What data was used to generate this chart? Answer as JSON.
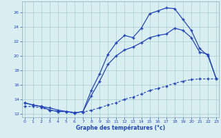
{
  "bg_color": "#d8eef0",
  "grid_color": "#a8ccd0",
  "line_color": "#2244bb",
  "title": "Graphe des températures (°c)",
  "xlim": [
    -0.3,
    23.3
  ],
  "ylim": [
    11.5,
    27.5
  ],
  "xticks": [
    0,
    1,
    2,
    3,
    4,
    5,
    6,
    7,
    8,
    9,
    10,
    11,
    12,
    13,
    14,
    15,
    16,
    17,
    18,
    19,
    20,
    21,
    22,
    23
  ],
  "yticks": [
    12,
    14,
    16,
    18,
    20,
    22,
    24,
    26
  ],
  "line1_x": [
    0,
    1,
    2,
    3,
    4,
    5,
    6,
    7,
    8,
    9,
    10,
    11,
    12,
    13,
    14,
    15,
    16,
    17,
    18,
    19,
    20,
    21,
    22,
    23
  ],
  "line1_y": [
    13.5,
    13.2,
    13.0,
    12.5,
    12.3,
    12.3,
    12.1,
    12.3,
    15.2,
    17.5,
    20.2,
    21.8,
    22.8,
    22.5,
    23.8,
    25.8,
    26.2,
    26.6,
    26.5,
    25.0,
    23.5,
    21.0,
    20.0,
    16.8
  ],
  "line2_x": [
    0,
    1,
    2,
    3,
    4,
    5,
    6,
    7,
    8,
    9,
    10,
    11,
    12,
    13,
    14,
    15,
    16,
    17,
    18,
    19,
    20,
    21,
    22,
    23
  ],
  "line2_y": [
    13.5,
    13.2,
    13.0,
    12.8,
    12.5,
    12.3,
    12.1,
    12.3,
    14.5,
    16.5,
    18.8,
    20.0,
    20.8,
    21.2,
    21.8,
    22.5,
    22.8,
    23.0,
    23.8,
    23.5,
    22.5,
    20.5,
    20.2,
    16.8
  ],
  "line3_x": [
    0,
    1,
    2,
    3,
    4,
    5,
    6,
    7,
    8,
    9,
    10,
    11,
    12,
    13,
    14,
    15,
    16,
    17,
    18,
    19,
    20,
    21,
    22,
    23
  ],
  "line3_y": [
    13.0,
    13.0,
    12.8,
    12.5,
    12.3,
    12.3,
    12.2,
    12.2,
    12.5,
    12.8,
    13.2,
    13.5,
    14.0,
    14.3,
    14.7,
    15.2,
    15.5,
    15.8,
    16.2,
    16.5,
    16.7,
    16.8,
    16.8,
    16.8
  ]
}
